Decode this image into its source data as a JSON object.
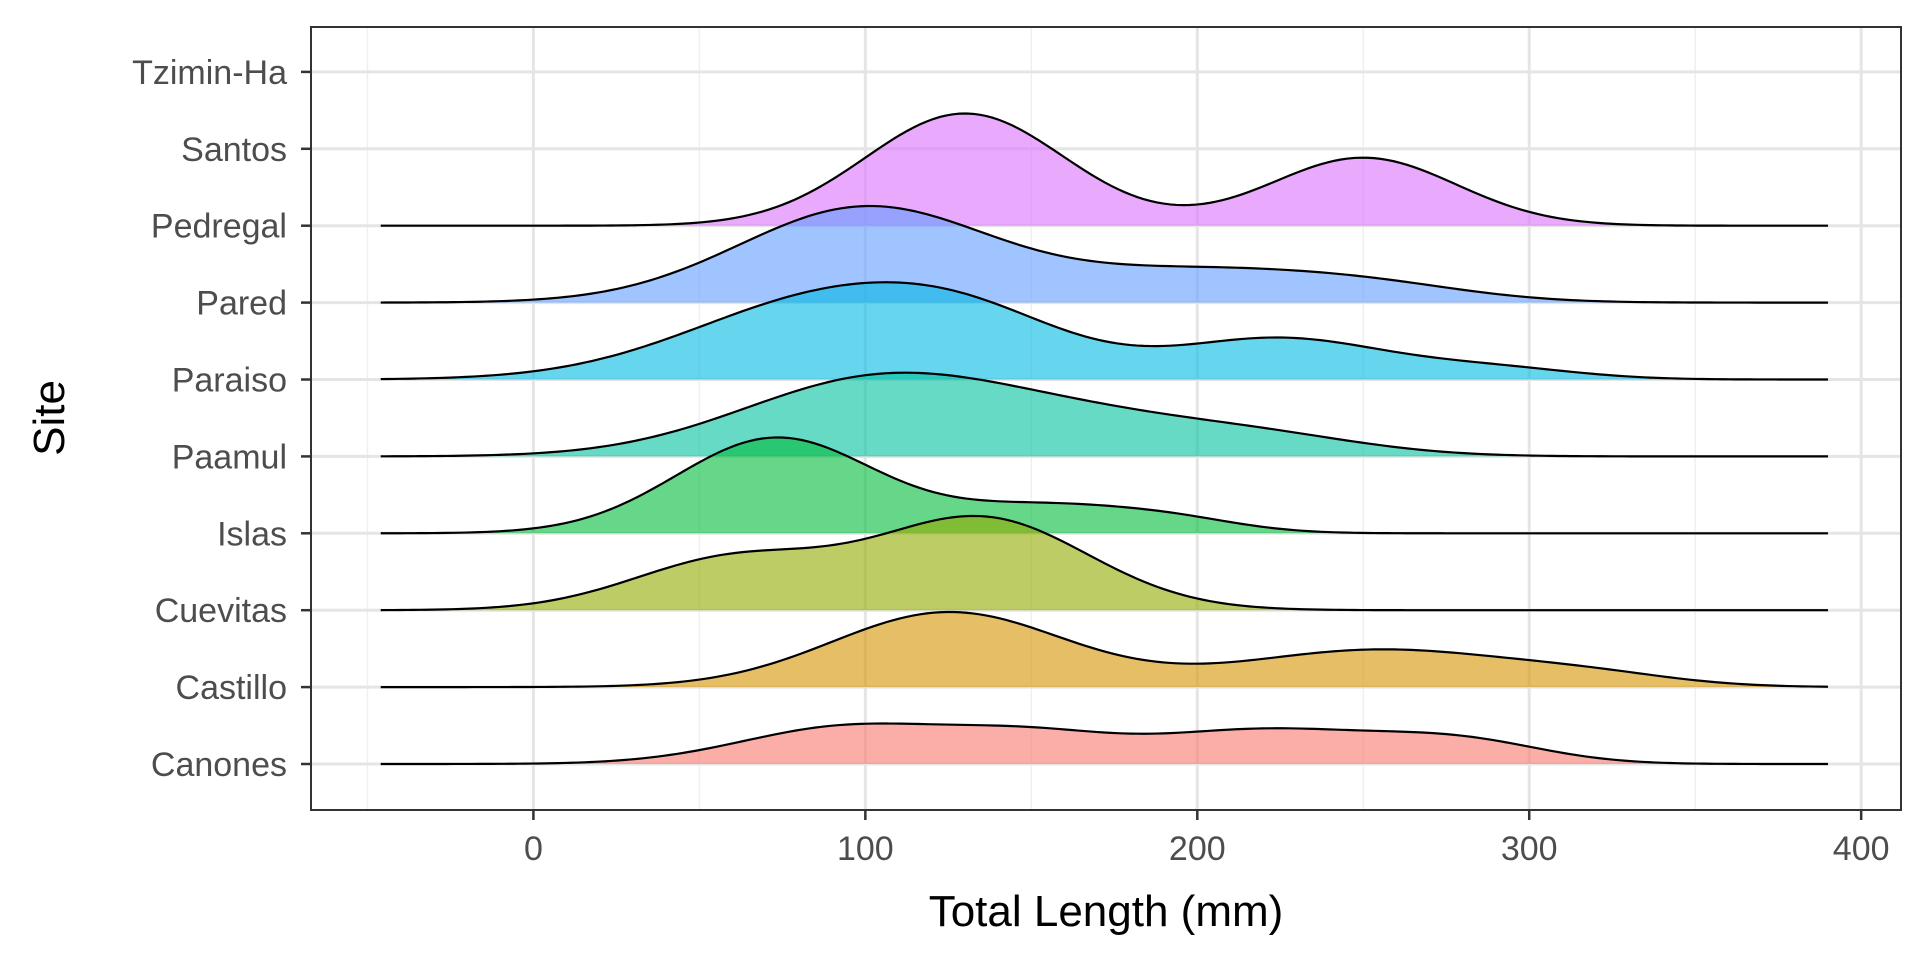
{
  "chart_data": {
    "type": "ridgeline",
    "xlabel": "Total Length (mm)",
    "ylabel": "Site",
    "xlim": [
      -67,
      412
    ],
    "x_ticks": [
      0,
      100,
      200,
      300,
      400
    ],
    "x_tick_labels": [
      "0",
      "100",
      "200",
      "300",
      "400"
    ],
    "density_range": [
      -46,
      390
    ],
    "grid": true,
    "legend": "none",
    "categories": [
      "Canones",
      "Castillo",
      "Cuevitas",
      "Islas",
      "Paamul",
      "Paraiso",
      "Pared",
      "Pedregal",
      "Santos",
      "Tzimin-Ha"
    ],
    "series": [
      {
        "name": "Canones",
        "color": "#F8766D",
        "components": [
          [
            0.55,
            95,
            32
          ],
          [
            0.5,
            220,
            35
          ],
          [
            0.3,
            280,
            25
          ],
          [
            0.35,
            150,
            25
          ]
        ]
      },
      {
        "name": "Castillo",
        "color": "#D39200",
        "components": [
          [
            1.1,
            125,
            35
          ],
          [
            0.55,
            255,
            42
          ],
          [
            0.12,
            320,
            25
          ]
        ]
      },
      {
        "name": "Cuevitas",
        "color": "#93AA00",
        "components": [
          [
            0.75,
            60,
            30
          ],
          [
            1.35,
            135,
            32
          ]
        ]
      },
      {
        "name": "Islas",
        "color": "#00BA38",
        "components": [
          [
            1.4,
            73,
            30
          ],
          [
            0.4,
            155,
            30
          ],
          [
            0.12,
            195,
            20
          ]
        ]
      },
      {
        "name": "Paamul",
        "color": "#00C19F",
        "components": [
          [
            1.0,
            100,
            40
          ],
          [
            0.55,
            165,
            45
          ],
          [
            0.15,
            225,
            30
          ]
        ]
      },
      {
        "name": "Paraiso",
        "color": "#00B9E3",
        "components": [
          [
            1.2,
            90,
            42
          ],
          [
            0.5,
            135,
            30
          ],
          [
            0.6,
            225,
            32
          ],
          [
            0.15,
            290,
            25
          ]
        ]
      },
      {
        "name": "Pared",
        "color": "#619CFF",
        "components": [
          [
            1.4,
            100,
            38
          ],
          [
            0.45,
            200,
            40
          ],
          [
            0.18,
            255,
            30
          ]
        ]
      },
      {
        "name": "Pedregal",
        "color": "#DB72FB",
        "components": [
          [
            1.65,
            130,
            30
          ],
          [
            1.0,
            250,
            28
          ]
        ]
      },
      {
        "name": "Santos",
        "color": "#FF61C3",
        "components": []
      },
      {
        "name": "Tzimin-Ha",
        "color": "#FF61C3",
        "components": []
      }
    ]
  }
}
